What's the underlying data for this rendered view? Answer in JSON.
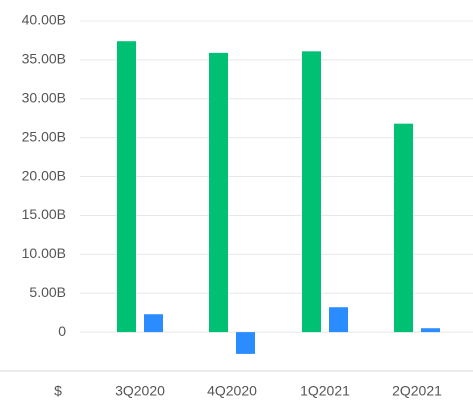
{
  "chart_data": {
    "type": "bar",
    "categories": [
      "3Q2020",
      "4Q2020",
      "1Q2021",
      "2Q2021"
    ],
    "series": [
      {
        "color": "#00c073",
        "values": [
          37.4,
          35.9,
          36.1,
          26.8
        ]
      },
      {
        "color": "#2b8cff",
        "values": [
          2.3,
          -2.8,
          3.2,
          0.5
        ]
      }
    ],
    "ylim": [
      -5,
      40
    ],
    "yticks": [
      0,
      {
        "value": 5,
        "label": "5.00B"
      },
      {
        "value": 10,
        "label": "10.00B"
      },
      {
        "value": 15,
        "label": "15.00B"
      },
      {
        "value": 20,
        "label": "20.00B"
      },
      {
        "value": 25,
        "label": "25.00B"
      },
      {
        "value": 30,
        "label": "30.00B"
      },
      {
        "value": 35,
        "label": "35.00B"
      },
      {
        "value": 40,
        "label": "40.00B"
      }
    ],
    "xlabel": "$",
    "grid": true
  }
}
